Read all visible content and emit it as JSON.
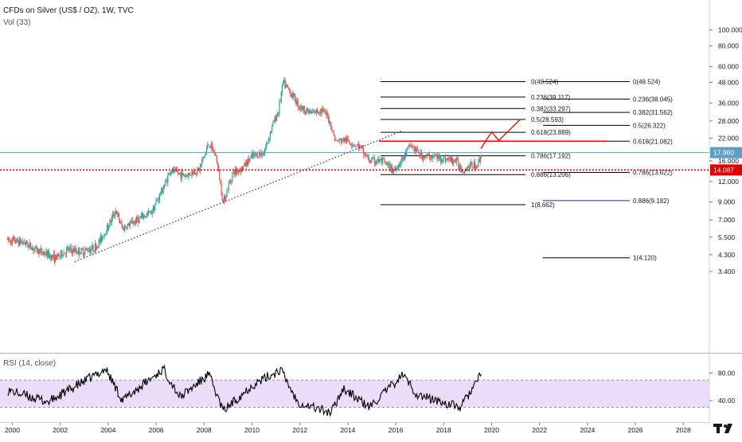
{
  "legend": {
    "title": "CFDs on Silver (US$ / OZ), 1W, TVC",
    "volume": "Vol (33)",
    "rsi": "RSI (14, close)"
  },
  "colors": {
    "up": "#26a69a",
    "down": "#ef5350",
    "current_price": "#5e9fbf",
    "support": "#e00000",
    "trendline": "#3f3fbf",
    "rsi_band": "#e4ccf7",
    "fib_line": "#000000",
    "projection": "#ff0000"
  },
  "chart_data": [
    {
      "type": "line",
      "description_key": "price",
      "y_axis": {
        "scale": "log",
        "tick_labels": [
          "100.000",
          "80.000",
          "60.000",
          "48.000",
          "36.000",
          "28.000",
          "22.000",
          "16.000",
          "12.000",
          "9.000",
          "7.000",
          "5.500",
          "4.300",
          "3.400"
        ],
        "tick_values": [
          100,
          80,
          60,
          48,
          36,
          28,
          22,
          16,
          12,
          9,
          7,
          5.5,
          4.3,
          3.4
        ]
      },
      "x_axis": {
        "tick_labels": [
          "2000",
          "2002",
          "2004",
          "2006",
          "2008",
          "2010",
          "2012",
          "2014",
          "2016",
          "2018",
          "2020",
          "2022",
          "2024",
          "2026",
          "2028"
        ],
        "tick_values": [
          2000,
          2002,
          2004,
          2006,
          2008,
          2010,
          2012,
          2014,
          2016,
          2018,
          2020,
          2022,
          2024,
          2026,
          2028
        ]
      },
      "series": [
        {
          "x": [
            1999.8,
            2000.5,
            2001.0,
            2001.5,
            2001.8,
            2002.3,
            2002.9,
            2003.5,
            2004.0,
            2004.3,
            2004.6,
            2005.2,
            2005.8,
            2006.3,
            2006.6,
            2007.2,
            2007.8,
            2008.2,
            2008.5,
            2008.8,
            2009.2,
            2009.6,
            2010.0,
            2010.5,
            2010.9,
            2011.1,
            2011.3,
            2011.7,
            2012.0,
            2012.5,
            2012.9,
            2013.2,
            2013.5,
            2013.9,
            2014.5,
            2014.9,
            2015.4,
            2015.9,
            2016.3,
            2016.6,
            2017.1,
            2017.6,
            2018.0,
            2018.5,
            2018.8,
            2019.1,
            2019.4,
            2019.6
          ],
          "y": [
            5.3,
            5.1,
            4.6,
            4.3,
            4.1,
            4.6,
            4.5,
            4.8,
            6.4,
            8.0,
            6.2,
            7.0,
            7.8,
            11.0,
            14.0,
            13.0,
            14.2,
            20.5,
            17.0,
            9.0,
            13.5,
            14.5,
            17.0,
            18.0,
            27.5,
            32.0,
            48.0,
            40.0,
            34.0,
            31.0,
            33.0,
            29.0,
            21.0,
            21.5,
            19.5,
            16.0,
            16.0,
            14.0,
            16.5,
            20.0,
            17.0,
            17.0,
            16.5,
            16.0,
            14.0,
            15.0,
            15.0,
            17.96
          ]
        }
      ],
      "labels": {
        "current_price": "17.960",
        "support_price": "14.087"
      },
      "fib_left": [
        {
          "label": "0(48.524)",
          "value": 48.524
        },
        {
          "label": "0.236(39.117)",
          "value": 39.117
        },
        {
          "label": "0.382(33.297)",
          "value": 33.297
        },
        {
          "label": "0.5(28.593)",
          "value": 28.593
        },
        {
          "label": "0.618(23.889)",
          "value": 23.889
        },
        {
          "label": "0.786(17.192)",
          "value": 17.192
        },
        {
          "label": "0.886(13.206)",
          "value": 13.206
        },
        {
          "label": "1(8.662)",
          "value": 8.662
        }
      ],
      "fib_right": [
        {
          "label": "0(48.524)",
          "value": 48.524
        },
        {
          "label": "0.236(38.045)",
          "value": 38.045
        },
        {
          "label": "0.382(31.562)",
          "value": 31.562
        },
        {
          "label": "0.5(26.322)",
          "value": 26.322
        },
        {
          "label": "0.618(21.082)",
          "value": 21.082
        },
        {
          "label": "0.786(13.622)",
          "value": 13.622
        },
        {
          "label": "0.886(9.182)",
          "value": 9.182
        },
        {
          "label": "1(4.120)",
          "value": 4.12
        }
      ]
    },
    {
      "type": "line",
      "description_key": "rsi",
      "y_axis": {
        "tick_labels": [
          "80.00",
          "40.00"
        ],
        "tick_values": [
          80,
          40
        ]
      },
      "band": [
        30,
        70
      ],
      "series": [
        {
          "x": [
            1999.8,
            2001.5,
            2003.9,
            2004.6,
            2006.3,
            2007.0,
            2008.2,
            2008.8,
            2010.0,
            2011.2,
            2011.9,
            2013.3,
            2013.8,
            2014.9,
            2016.3,
            2016.9,
            2018.7,
            2019.6
          ],
          "y": [
            55,
            38,
            86,
            40,
            86,
            45,
            78,
            25,
            62,
            85,
            38,
            22,
            58,
            30,
            78,
            48,
            30,
            80
          ]
        }
      ]
    }
  ]
}
